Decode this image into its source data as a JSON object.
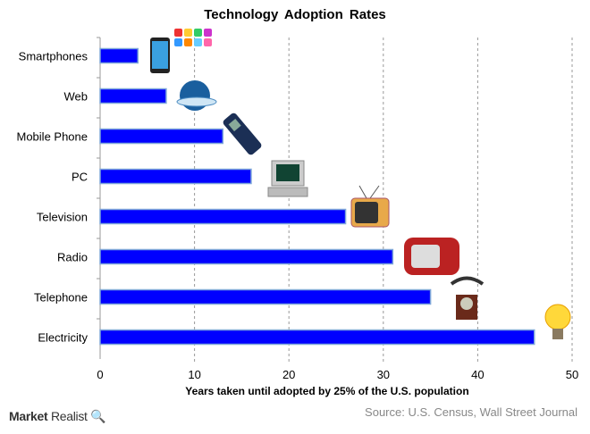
{
  "chart_data": {
    "type": "bar",
    "orientation": "horizontal",
    "title": "Technology Adoption Rates",
    "xlabel": "Years taken until adopted by 25% of the U.S. population",
    "ylabel": "",
    "categories": [
      "Smartphones",
      "Web",
      "Mobile Phone",
      "PC",
      "Television",
      "Radio",
      "Telephone",
      "Electricity"
    ],
    "values": [
      4,
      7,
      13,
      16,
      26,
      31,
      35,
      46
    ],
    "xlim": [
      0,
      50
    ],
    "xticks": [
      0,
      10,
      20,
      30,
      40,
      50
    ],
    "grid": "vertical dashed",
    "bar_color": "#0000FF",
    "bar_border": "#7FA7D9",
    "icons": [
      "smartphone-icon",
      "globe-web-icon",
      "mobile-phone-icon",
      "pc-icon",
      "television-icon",
      "radio-icon",
      "telephone-icon",
      "light-bulb-icon"
    ]
  },
  "source": "Source: U.S. Census, Wall Street Journal",
  "brand": {
    "name1": "Market",
    "name2": "Realist"
  }
}
